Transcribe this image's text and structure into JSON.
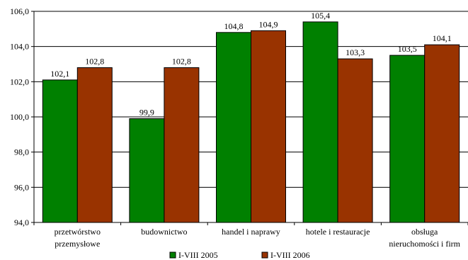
{
  "chart_data": {
    "type": "bar",
    "title": "",
    "xlabel": "",
    "ylabel": "",
    "categories": [
      [
        "przetwórstwo",
        "przemysłowe"
      ],
      [
        "budownictwo"
      ],
      [
        "handel i naprawy"
      ],
      [
        "hotele i restauracje"
      ],
      [
        "obsługa",
        "nieruchomości i firm"
      ]
    ],
    "series": [
      {
        "name": "I-VIII 2005",
        "color": "#008000",
        "values": [
          102.1,
          99.9,
          104.8,
          105.4,
          103.5
        ],
        "labels": [
          "102,1",
          "99,9",
          "104,8",
          "105,4",
          "103,5"
        ]
      },
      {
        "name": "I-VIII 2006",
        "color": "#993300",
        "values": [
          102.8,
          102.8,
          104.9,
          103.3,
          104.1
        ],
        "labels": [
          "102,8",
          "102,8",
          "104,9",
          "103,3",
          "104,1"
        ]
      }
    ],
    "ylim": [
      94.0,
      106.0
    ],
    "yticks": [
      94.0,
      96.0,
      98.0,
      100.0,
      102.0,
      104.0,
      106.0
    ],
    "ytick_labels": [
      "94,0",
      "96,0",
      "98,0",
      "100,0",
      "102,0",
      "104,0",
      "106,0"
    ],
    "grid": true,
    "legend_position": "bottom"
  }
}
